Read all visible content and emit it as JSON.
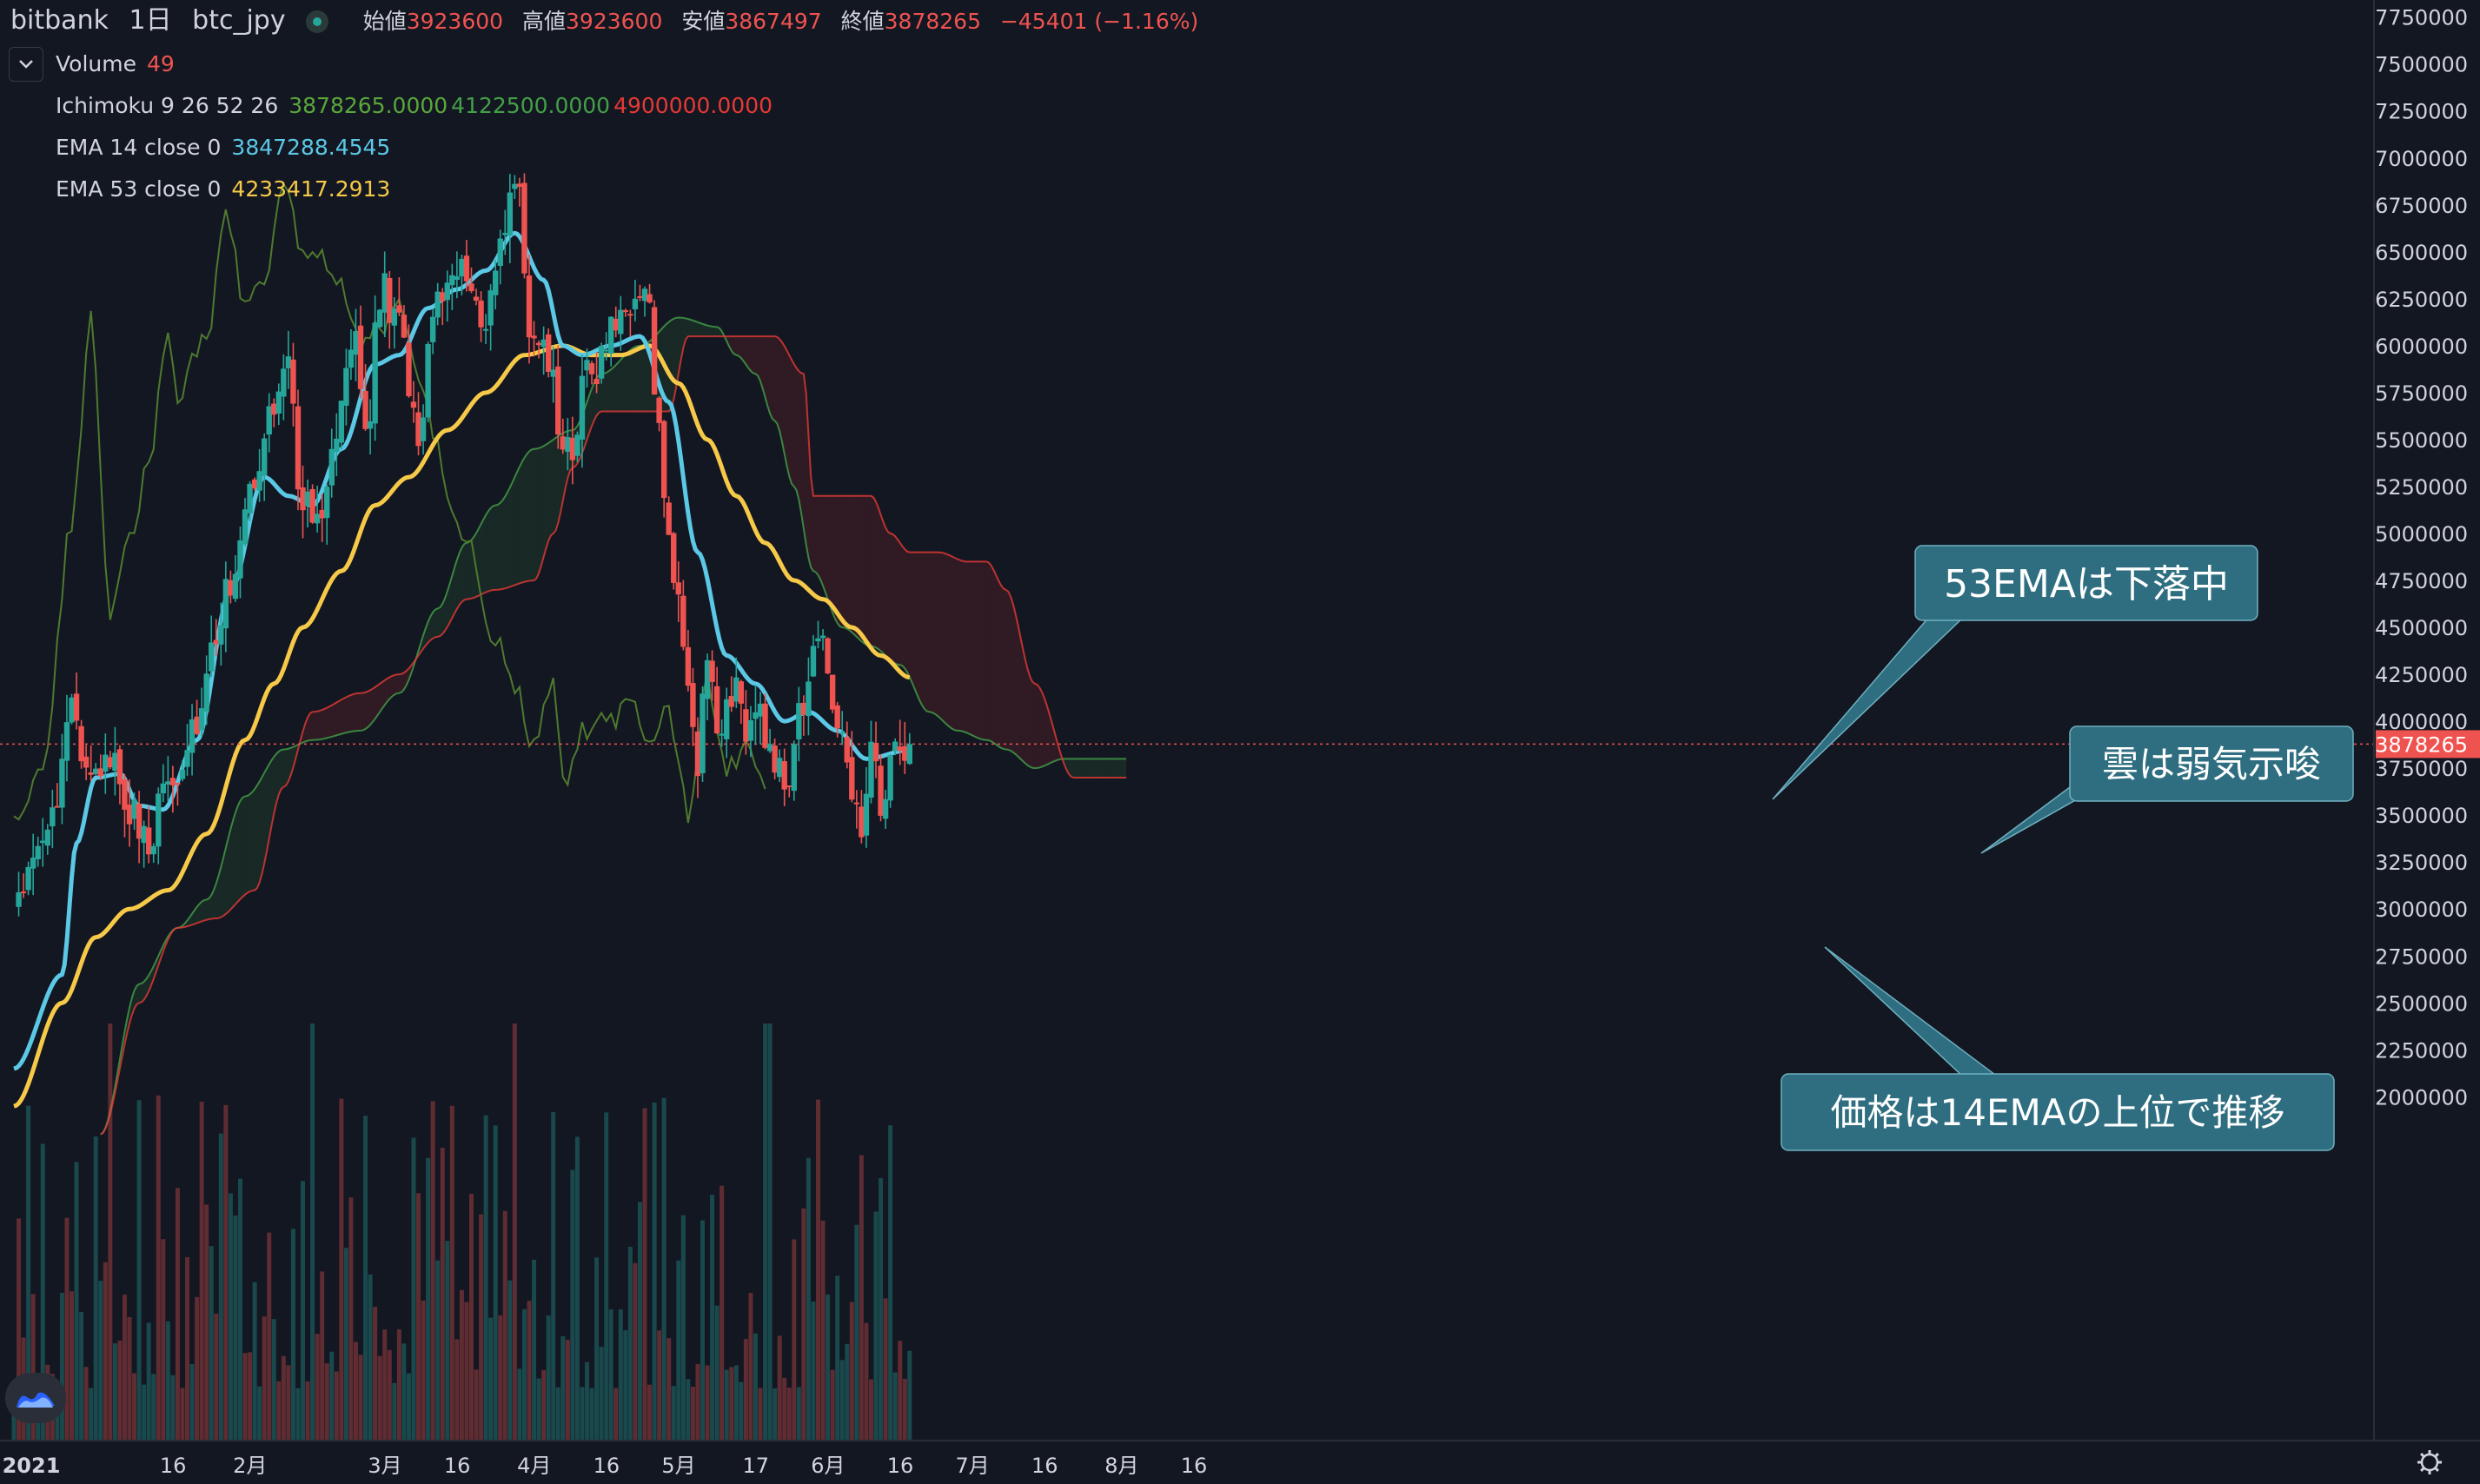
{
  "header": {
    "exchange": "bitbank",
    "interval": "1日",
    "symbol": "btc_jpy",
    "open_label": "始値",
    "open": "3923600",
    "high_label": "高値",
    "high": "3923600",
    "low_label": "安値",
    "low": "3867497",
    "close_label": "終値",
    "close": "3878265",
    "change": "−45401 (−1.16%)"
  },
  "indicators": {
    "volume": {
      "label": "Volume",
      "value": "49"
    },
    "ichimoku": {
      "label": "Ichimoku 9 26 52 26",
      "v1": "3878265.0000",
      "v2": "4122500.0000",
      "v3": "4900000.0000"
    },
    "ema14": {
      "label": "EMA 14 close 0",
      "value": "3847288.4545"
    },
    "ema53": {
      "label": "EMA 53 close 0",
      "value": "4233417.2913"
    }
  },
  "annotations": {
    "ema53": "53EMAは下落中",
    "cloud": "雲は弱気示唆",
    "price": "価格は14EMAの上位で推移"
  },
  "colors": {
    "background": "#131722",
    "up": "#26a69a",
    "down": "#ef5350",
    "ema14": "#5bc8e6",
    "ema53": "#f7c948",
    "span_a": "#43a047",
    "span_b": "#e53935",
    "lagging": "#4e7a2e",
    "annotation_bg": "#2e6e80"
  },
  "icons": {
    "collapse": "chevron-down-icon",
    "settings": "gear-icon",
    "logo": "tradingview-logo-icon",
    "status": "market-status-icon"
  },
  "chart_data": {
    "type": "candlestick",
    "y_min": 1850000,
    "y_max": 7800000,
    "y_ticks": [
      "7500000",
      "7250000",
      "7000000",
      "6750000",
      "6500000",
      "6250000",
      "6000000",
      "5750000",
      "5500000",
      "5250000",
      "5000000",
      "4750000",
      "4500000",
      "4250000",
      "4000000",
      "3750000",
      "3500000",
      "3250000",
      "3000000",
      "2750000",
      "2500000",
      "2250000",
      "2000000"
    ],
    "x_labels": [
      "2021",
      "16",
      "2月",
      "3月",
      "16",
      "4月",
      "16",
      "5月",
      "17",
      "6月",
      "16",
      "7月",
      "16",
      "8月",
      "16"
    ],
    "x_label_days": [
      0,
      15,
      31,
      59,
      74,
      90,
      105,
      120,
      136,
      151,
      166,
      181,
      196,
      212,
      227
    ],
    "x_domain_days": [
      0,
      238
    ],
    "last_price": "3878265",
    "last_price_value": 3878265,
    "last_day": 186,
    "price_anchors": [
      [
        0,
        3000000
      ],
      [
        4,
        3200000
      ],
      [
        8,
        3500000
      ],
      [
        12,
        4150000
      ],
      [
        16,
        3650000
      ],
      [
        20,
        3750000
      ],
      [
        24,
        3550000
      ],
      [
        28,
        3350000
      ],
      [
        32,
        3650000
      ],
      [
        38,
        3950000
      ],
      [
        42,
        4500000
      ],
      [
        46,
        4800000
      ],
      [
        50,
        5300000
      ],
      [
        54,
        5650000
      ],
      [
        57,
        5900000
      ],
      [
        60,
        5150000
      ],
      [
        64,
        5050000
      ],
      [
        67,
        5600000
      ],
      [
        71,
        6050000
      ],
      [
        73,
        5450000
      ],
      [
        76,
        6300000
      ],
      [
        80,
        6150000
      ],
      [
        84,
        5500000
      ],
      [
        87,
        6250000
      ],
      [
        90,
        6350000
      ],
      [
        94,
        6450000
      ],
      [
        97,
        6100000
      ],
      [
        101,
        6500000
      ],
      [
        104,
        6950000
      ],
      [
        107,
        6150000
      ],
      [
        110,
        6000000
      ],
      [
        114,
        5550000
      ],
      [
        116,
        5300000
      ],
      [
        118,
        5950000
      ],
      [
        122,
        5900000
      ],
      [
        126,
        6250000
      ],
      [
        130,
        6300000
      ],
      [
        132,
        6150000
      ],
      [
        134,
        5500000
      ],
      [
        136,
        5000000
      ],
      [
        138,
        4600000
      ],
      [
        140,
        4200000
      ],
      [
        142,
        3800000
      ],
      [
        144,
        4300000
      ],
      [
        147,
        3950000
      ],
      [
        150,
        4200000
      ],
      [
        152,
        3850000
      ],
      [
        155,
        4100000
      ],
      [
        157,
        3800000
      ],
      [
        160,
        3700000
      ],
      [
        164,
        4100000
      ],
      [
        167,
        4450000
      ],
      [
        170,
        4100000
      ],
      [
        173,
        3750000
      ],
      [
        176,
        3450000
      ],
      [
        178,
        3800000
      ],
      [
        180,
        3550000
      ],
      [
        182,
        3850000
      ],
      [
        186,
        3878265
      ]
    ],
    "ema14_anchors": [
      [
        0,
        2150000
      ],
      [
        10,
        2650000
      ],
      [
        13,
        3350000
      ],
      [
        17,
        3700000
      ],
      [
        22,
        3720000
      ],
      [
        26,
        3550000
      ],
      [
        31,
        3530000
      ],
      [
        38,
        3900000
      ],
      [
        45,
        4700000
      ],
      [
        52,
        5300000
      ],
      [
        57,
        5200000
      ],
      [
        62,
        5150000
      ],
      [
        68,
        5450000
      ],
      [
        75,
        5900000
      ],
      [
        80,
        5950000
      ],
      [
        86,
        6200000
      ],
      [
        92,
        6300000
      ],
      [
        98,
        6400000
      ],
      [
        104,
        6600000
      ],
      [
        110,
        6350000
      ],
      [
        114,
        6000000
      ],
      [
        118,
        5950000
      ],
      [
        124,
        6000000
      ],
      [
        130,
        6050000
      ],
      [
        136,
        5700000
      ],
      [
        142,
        4900000
      ],
      [
        148,
        4350000
      ],
      [
        154,
        4200000
      ],
      [
        160,
        4000000
      ],
      [
        165,
        4050000
      ],
      [
        171,
        3950000
      ],
      [
        177,
        3800000
      ],
      [
        186,
        3847288
      ]
    ],
    "ema53_anchors": [
      [
        0,
        1950000
      ],
      [
        10,
        2500000
      ],
      [
        17,
        2850000
      ],
      [
        24,
        3000000
      ],
      [
        32,
        3100000
      ],
      [
        40,
        3400000
      ],
      [
        48,
        3900000
      ],
      [
        54,
        4200000
      ],
      [
        60,
        4500000
      ],
      [
        68,
        4800000
      ],
      [
        75,
        5150000
      ],
      [
        82,
        5300000
      ],
      [
        90,
        5550000
      ],
      [
        98,
        5750000
      ],
      [
        106,
        5950000
      ],
      [
        114,
        6000000
      ],
      [
        120,
        5950000
      ],
      [
        126,
        5950000
      ],
      [
        132,
        6000000
      ],
      [
        138,
        5800000
      ],
      [
        144,
        5500000
      ],
      [
        150,
        5200000
      ],
      [
        156,
        4950000
      ],
      [
        162,
        4750000
      ],
      [
        168,
        4650000
      ],
      [
        174,
        4500000
      ],
      [
        180,
        4350000
      ],
      [
        186,
        4233417
      ]
    ],
    "span_a_anchors": [
      [
        18,
        1800000
      ],
      [
        26,
        2600000
      ],
      [
        34,
        2900000
      ],
      [
        40,
        3050000
      ],
      [
        48,
        3600000
      ],
      [
        56,
        3850000
      ],
      [
        62,
        3900000
      ],
      [
        72,
        3950000
      ],
      [
        80,
        4150000
      ],
      [
        88,
        4600000
      ],
      [
        94,
        4950000
      ],
      [
        100,
        5150000
      ],
      [
        108,
        5450000
      ],
      [
        116,
        5550000
      ],
      [
        122,
        5850000
      ],
      [
        130,
        6000000
      ],
      [
        138,
        6150000
      ],
      [
        146,
        6100000
      ],
      [
        150,
        5950000
      ],
      [
        154,
        5850000
      ],
      [
        158,
        5600000
      ],
      [
        162,
        5250000
      ],
      [
        166,
        4800000
      ],
      [
        172,
        4500000
      ],
      [
        178,
        4400000
      ],
      [
        184,
        4300000
      ],
      [
        190,
        4050000
      ],
      [
        196,
        3950000
      ],
      [
        202,
        3900000
      ],
      [
        206,
        3850000
      ],
      [
        212,
        3750000
      ],
      [
        218,
        3800000
      ],
      [
        226,
        3800000
      ],
      [
        231,
        3800000
      ]
    ],
    "span_b_anchors": [
      [
        18,
        1800000
      ],
      [
        26,
        2500000
      ],
      [
        34,
        2900000
      ],
      [
        42,
        2950000
      ],
      [
        50,
        3100000
      ],
      [
        56,
        3650000
      ],
      [
        62,
        4050000
      ],
      [
        72,
        4150000
      ],
      [
        80,
        4250000
      ],
      [
        88,
        4450000
      ],
      [
        94,
        4650000
      ],
      [
        100,
        4700000
      ],
      [
        108,
        4750000
      ],
      [
        112,
        5000000
      ],
      [
        116,
        5350000
      ],
      [
        122,
        5650000
      ],
      [
        130,
        5650000
      ],
      [
        136,
        5650000
      ],
      [
        140,
        6050000
      ],
      [
        146,
        6050000
      ],
      [
        152,
        6050000
      ],
      [
        158,
        6050000
      ],
      [
        164,
        5850000
      ],
      [
        166,
        5200000
      ],
      [
        172,
        5200000
      ],
      [
        178,
        5200000
      ],
      [
        182,
        5000000
      ],
      [
        186,
        4900000
      ],
      [
        192,
        4900000
      ],
      [
        198,
        4850000
      ],
      [
        202,
        4850000
      ],
      [
        206,
        4700000
      ],
      [
        212,
        4200000
      ],
      [
        220,
        3700000
      ],
      [
        231,
        3700000
      ]
    ],
    "lagging_anchors": [
      [
        0,
        3500000
      ],
      [
        6,
        3700000
      ],
      [
        12,
        5050000
      ],
      [
        16,
        6150000
      ],
      [
        20,
        4550000
      ],
      [
        24,
        5000000
      ],
      [
        28,
        5350000
      ],
      [
        32,
        6050000
      ],
      [
        34,
        5650000
      ],
      [
        37,
        5950000
      ],
      [
        40,
        6050000
      ],
      [
        44,
        6700000
      ],
      [
        48,
        6200000
      ],
      [
        52,
        6350000
      ],
      [
        56,
        6850000
      ],
      [
        60,
        6500000
      ],
      [
        64,
        6450000
      ],
      [
        68,
        6300000
      ],
      [
        72,
        6000000
      ],
      [
        76,
        6100000
      ],
      [
        80,
        6200000
      ],
      [
        84,
        5800000
      ],
      [
        88,
        5500000
      ],
      [
        90,
        5200000
      ],
      [
        94,
        4950000
      ],
      [
        100,
        4450000
      ],
      [
        104,
        4200000
      ],
      [
        108,
        3850000
      ],
      [
        112,
        4250000
      ],
      [
        114,
        3650000
      ],
      [
        118,
        3950000
      ],
      [
        124,
        4000000
      ],
      [
        128,
        4100000
      ],
      [
        132,
        3900000
      ],
      [
        136,
        4100000
      ],
      [
        138,
        3750000
      ],
      [
        140,
        3500000
      ],
      [
        144,
        4200000
      ],
      [
        148,
        3750000
      ],
      [
        152,
        3850000
      ],
      [
        156,
        3650000
      ]
    ],
    "volume_y_max": 1400,
    "volume_range": [
      150,
      1000
    ]
  }
}
